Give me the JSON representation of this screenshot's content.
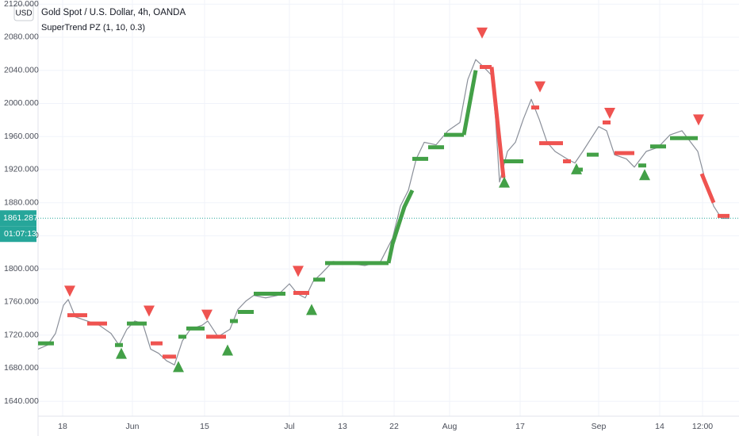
{
  "chart_data": {
    "type": "line",
    "title": "Gold Spot / U.S. Dollar, 4h, OANDA",
    "indicator": "SuperTrend PZ (1, 10, 0.3)",
    "currency": "USD",
    "last_price": {
      "value": 1861.287,
      "label": "1861.287"
    },
    "countdown": "01:07:13",
    "grid": true,
    "xlim": [
      0,
      884
    ],
    "ylim": [
      1622,
      2125
    ],
    "yticks": [
      {
        "value": 1640,
        "label": "1640.000"
      },
      {
        "value": 1680,
        "label": "1680.000"
      },
      {
        "value": 1720,
        "label": "1720.000"
      },
      {
        "value": 1760,
        "label": "1760.000"
      },
      {
        "value": 1800,
        "label": "1800.000"
      },
      {
        "value": 1840,
        "label": "1840.000"
      },
      {
        "value": 1880,
        "label": "1880.000"
      },
      {
        "value": 1920,
        "label": "1920.000"
      },
      {
        "value": 1960,
        "label": "1960.000"
      },
      {
        "value": 2000,
        "label": "2000.000"
      },
      {
        "value": 2040,
        "label": "2040.000"
      },
      {
        "value": 2080,
        "label": "2080.000"
      },
      {
        "value": 2120,
        "label": "2120.000"
      }
    ],
    "xticks": [
      {
        "value": 31,
        "label": "18"
      },
      {
        "value": 119,
        "label": "Jun"
      },
      {
        "value": 210,
        "label": "15"
      },
      {
        "value": 317,
        "label": "Jul"
      },
      {
        "value": 384,
        "label": "13"
      },
      {
        "value": 449,
        "label": "22"
      },
      {
        "value": 519,
        "label": "Aug"
      },
      {
        "value": 608,
        "label": "17"
      },
      {
        "value": 707,
        "label": "Sep"
      },
      {
        "value": 784,
        "label": "14"
      },
      {
        "value": 838,
        "label": "12:00"
      }
    ],
    "price": {
      "color": "#8a8f99",
      "x": [
        0,
        12,
        22,
        32,
        38,
        47,
        62,
        77,
        92,
        102,
        112,
        122,
        132,
        142,
        152,
        162,
        172,
        182,
        192,
        207,
        214,
        227,
        242,
        252,
        262,
        272,
        287,
        302,
        317,
        327,
        337,
        347,
        357,
        372,
        392,
        412,
        432,
        447,
        457,
        467,
        477,
        487,
        502,
        517,
        532,
        542,
        552,
        562,
        572,
        577,
        582,
        592,
        602,
        612,
        622,
        632,
        642,
        652,
        667,
        677,
        687,
        697,
        707,
        717,
        727,
        742,
        752,
        767,
        782,
        797,
        812,
        832,
        842,
        852,
        862,
        872
      ],
      "values": [
        1703,
        1708,
        1722,
        1756,
        1763,
        1742,
        1737,
        1732,
        1722,
        1708,
        1727,
        1737,
        1734,
        1703,
        1698,
        1689,
        1684,
        1713,
        1727,
        1732,
        1737,
        1718,
        1727,
        1751,
        1761,
        1768,
        1765,
        1768,
        1782,
        1770,
        1765,
        1785,
        1794,
        1809,
        1807,
        1804,
        1809,
        1837,
        1876,
        1895,
        1933,
        1953,
        1950,
        1967,
        1977,
        2029,
        2053,
        2044,
        2034,
        1981,
        1905,
        1942,
        1953,
        1981,
        2005,
        1981,
        1953,
        1942,
        1933,
        1928,
        1942,
        1957,
        1972,
        1967,
        1938,
        1933,
        1923,
        1942,
        1947,
        1962,
        1967,
        1942,
        1905,
        1876,
        1861,
        1861
      ]
    },
    "supertrend_up": {
      "color": "#43a047",
      "x": [
        0,
        20,
        null,
        97,
        107,
        null,
        112,
        137,
        null,
        177,
        187,
        null,
        187,
        210,
        null,
        242,
        252,
        null,
        252,
        272,
        null,
        272,
        312,
        null,
        347,
        362,
        null,
        362,
        442,
        null,
        442,
        447,
        462,
        472,
        null,
        472,
        492,
        null,
        492,
        512,
        null,
        512,
        537,
        null,
        537,
        552,
        null,
        587,
        612,
        null,
        677,
        687,
        null,
        692,
        707,
        null,
        757,
        767,
        null,
        772,
        792,
        null,
        797,
        832
      ],
      "values": [
        1710,
        1710,
        null,
        1708,
        1708,
        null,
        1734,
        1734,
        null,
        1718,
        1718,
        null,
        1728,
        1728,
        null,
        1737,
        1737,
        null,
        1748,
        1748,
        null,
        1770,
        1770,
        null,
        1787,
        1787,
        null,
        1807,
        1807,
        null,
        1807,
        1830,
        1875,
        1895,
        null,
        1933,
        1933,
        null,
        1947,
        1947,
        null,
        1962,
        1962,
        null,
        1962,
        2040,
        null,
        1930,
        1930,
        null,
        1920,
        1920,
        null,
        1938,
        1938,
        null,
        1925,
        1925,
        null,
        1948,
        1948,
        null,
        1958,
        1958
      ]
    },
    "supertrend_down": {
      "color": "#ef5350",
      "x": [
        37,
        62,
        null,
        62,
        87,
        null,
        142,
        157,
        null,
        157,
        174,
        null,
        212,
        237,
        null,
        322,
        342,
        null,
        557,
        572,
        null,
        572,
        587,
        null,
        622,
        632,
        null,
        632,
        662,
        null,
        662,
        672,
        null,
        712,
        722,
        null,
        727,
        752,
        null,
        837,
        852,
        null,
        857,
        872
      ],
      "values": [
        1744,
        1744,
        null,
        1734,
        1734,
        null,
        1710,
        1710,
        null,
        1694,
        1694,
        null,
        1718,
        1718,
        null,
        1771,
        1771,
        null,
        2044,
        2044,
        null,
        2044,
        1910,
        null,
        1995,
        1995,
        null,
        1952,
        1952,
        null,
        1930,
        1930,
        null,
        1977,
        1977,
        null,
        1940,
        1940,
        null,
        1915,
        1880,
        null,
        1864,
        1864
      ]
    },
    "sell_signals": {
      "color": "#ef5350",
      "x": [
        40,
        140,
        213,
        328,
        560,
        633,
        721,
        833
      ],
      "values": [
        1773,
        1749,
        1744,
        1797,
        2085,
        2020,
        1988,
        1980
      ]
    },
    "buy_signals": {
      "color": "#43a047",
      "x": [
        105,
        177,
        239,
        345,
        588,
        679,
        765
      ],
      "values": [
        1698,
        1682,
        1702,
        1751,
        1905,
        1921,
        1914
      ]
    }
  }
}
